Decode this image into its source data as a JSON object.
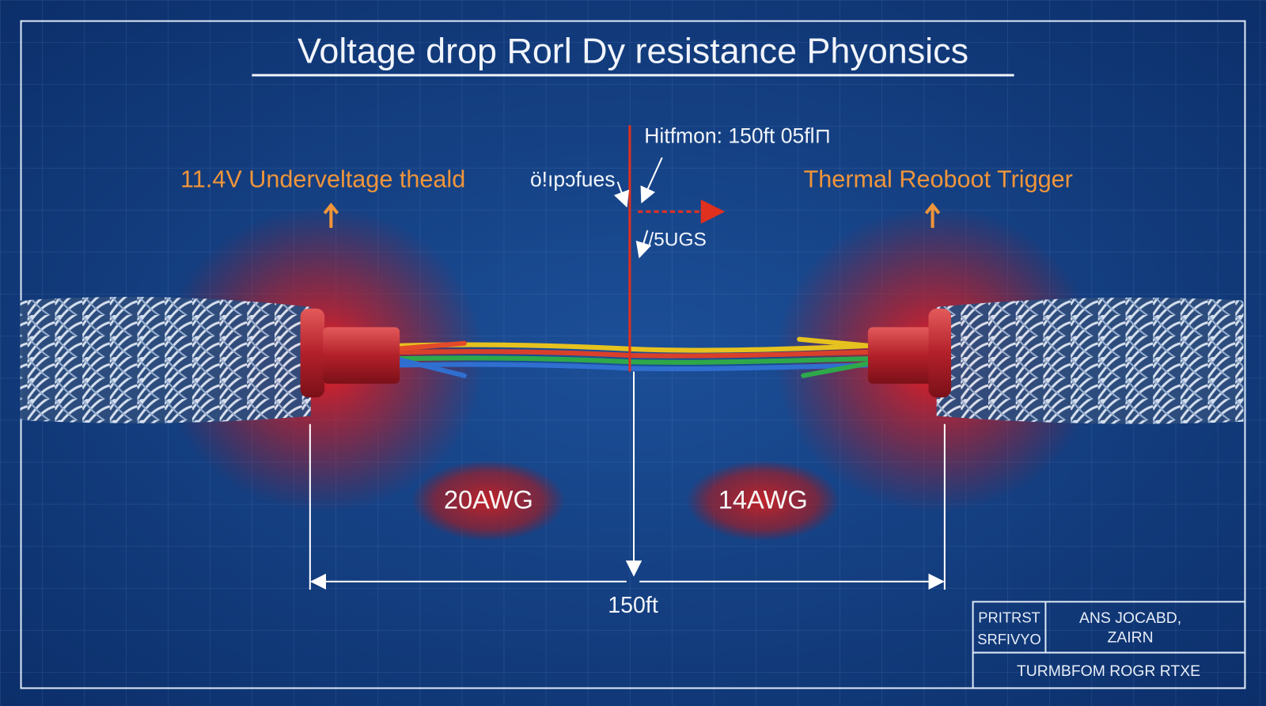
{
  "header": {
    "title": "Voltage drop Rorl Dy resistance Phyonsics"
  },
  "annotations": {
    "top_callout": "Hitfmon: 150ft 05fl⊓",
    "left_callout": "ö!ıpɔfues",
    "mid_callout": "/5UGS",
    "left_label": "11.4V Underveltage theald",
    "right_label": "Thermal Reoboot Trigger"
  },
  "gauges": {
    "left": "20AWG",
    "right": "14AWG"
  },
  "dimension": {
    "length": "150ft"
  },
  "title_block": {
    "cell_left": [
      "PRITRST",
      "SRFIVYO"
    ],
    "cell_right": [
      "ANS JOCABD,",
      "ZAIRN"
    ],
    "footer": "TURMBFOM ROGR RTXE"
  }
}
